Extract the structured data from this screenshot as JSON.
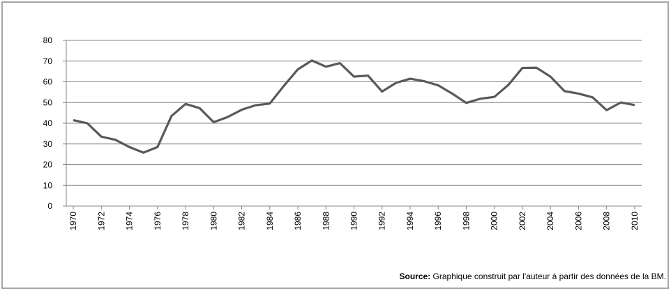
{
  "chart_data": {
    "type": "line",
    "x": [
      1970,
      1971,
      1972,
      1973,
      1974,
      1975,
      1976,
      1977,
      1978,
      1979,
      1980,
      1981,
      1982,
      1983,
      1984,
      1985,
      1986,
      1987,
      1988,
      1989,
      1990,
      1991,
      1992,
      1993,
      1994,
      1995,
      1996,
      1997,
      1998,
      1999,
      2000,
      2001,
      2002,
      2003,
      2004,
      2005,
      2006,
      2007,
      2008,
      2009,
      2010
    ],
    "values": [
      41.5,
      40,
      33.5,
      32,
      28.5,
      25.8,
      28.5,
      43.5,
      49.3,
      47.3,
      40.5,
      43,
      46.5,
      48.7,
      49.5,
      58,
      66,
      70.3,
      67.3,
      69,
      62.5,
      63,
      55.3,
      59.5,
      61.5,
      60.3,
      58.3,
      54.3,
      49.8,
      51.8,
      52.7,
      58.5,
      66.7,
      66.8,
      62.5,
      55.5,
      54.3,
      52.5,
      46.3,
      50,
      48.8
    ],
    "color": "#595959",
    "xlim": [
      1969.5,
      2010.5
    ],
    "xticks": [
      1970,
      1972,
      1974,
      1976,
      1978,
      1980,
      1982,
      1984,
      1986,
      1988,
      1990,
      1992,
      1994,
      1996,
      1998,
      2000,
      2002,
      2004,
      2006,
      2008,
      2010
    ],
    "ylim": [
      0,
      80
    ],
    "yticks": [
      0,
      10,
      20,
      30,
      40,
      50,
      60,
      70,
      80
    ],
    "grid": true,
    "source_label": "Source:",
    "source_text": "Graphique construit par l'auteur à partir des données de la BM."
  }
}
